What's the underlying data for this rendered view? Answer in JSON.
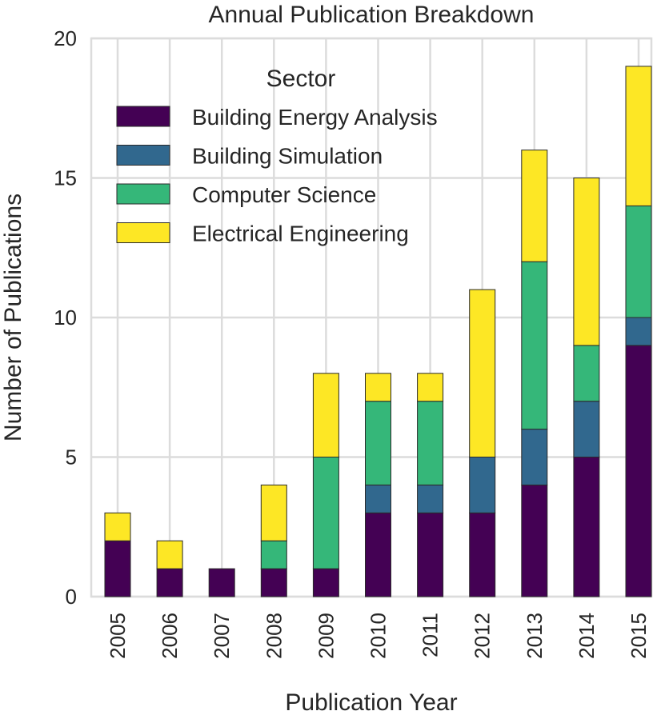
{
  "chart_data": {
    "type": "bar",
    "stacked": true,
    "title": "Annual Publication Breakdown",
    "xlabel": "Publication Year",
    "ylabel": "Number of Publications",
    "ylim": [
      0,
      20
    ],
    "yticks": [
      "0",
      "5",
      "10",
      "15",
      "20"
    ],
    "grid": true,
    "categories": [
      "2005",
      "2006",
      "2007",
      "2008",
      "2009",
      "2010",
      "2011",
      "2012",
      "2013",
      "2014",
      "2015"
    ],
    "legend": {
      "title": "Sector",
      "position": "top-left"
    },
    "series": [
      {
        "name": "Building Energy Analysis",
        "color": "#440154",
        "values": [
          2,
          1,
          1,
          1,
          1,
          3,
          3,
          3,
          4,
          5,
          9
        ]
      },
      {
        "name": "Building Simulation",
        "color": "#31688e",
        "values": [
          0,
          0,
          0,
          0,
          0,
          1,
          1,
          2,
          2,
          2,
          1
        ]
      },
      {
        "name": "Computer Science",
        "color": "#35b779",
        "values": [
          0,
          0,
          0,
          1,
          4,
          3,
          3,
          0,
          6,
          2,
          4
        ]
      },
      {
        "name": "Electrical Engineering",
        "color": "#fde725",
        "values": [
          1,
          1,
          0,
          2,
          3,
          1,
          1,
          6,
          4,
          6,
          5
        ]
      }
    ]
  }
}
